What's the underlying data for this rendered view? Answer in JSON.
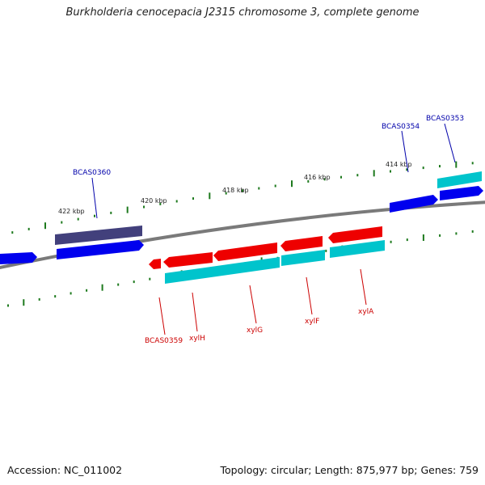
{
  "title": "Burkholderia cenocepacia J2315 chromosome 3, complete genome",
  "footer": {
    "accession": "Accession: NC_011002",
    "summary": "Topology: circular; Length: 875,977 bp; Genes: 759"
  },
  "colors": {
    "backbone": "#7a7a7a",
    "ticks": "#1e7a1e",
    "forward_gene": "#0000ee",
    "forward_gene_dark": "#42407c",
    "reverse_gene": "#ee0000",
    "cds": "#00c4cc",
    "forward_label": "#0000aa",
    "reverse_label": "#cc0000"
  },
  "scale_labels": [
    "422 kbp",
    "420 kbp",
    "418 kbp",
    "416 kbp",
    "414 kbp"
  ],
  "gene_labels": {
    "forward": [
      "BCAS0360",
      "BCAS0354",
      "BCAS0353"
    ],
    "reverse": [
      "BCAS0359",
      "xylH",
      "xylG",
      "xylF",
      "xylA"
    ]
  }
}
